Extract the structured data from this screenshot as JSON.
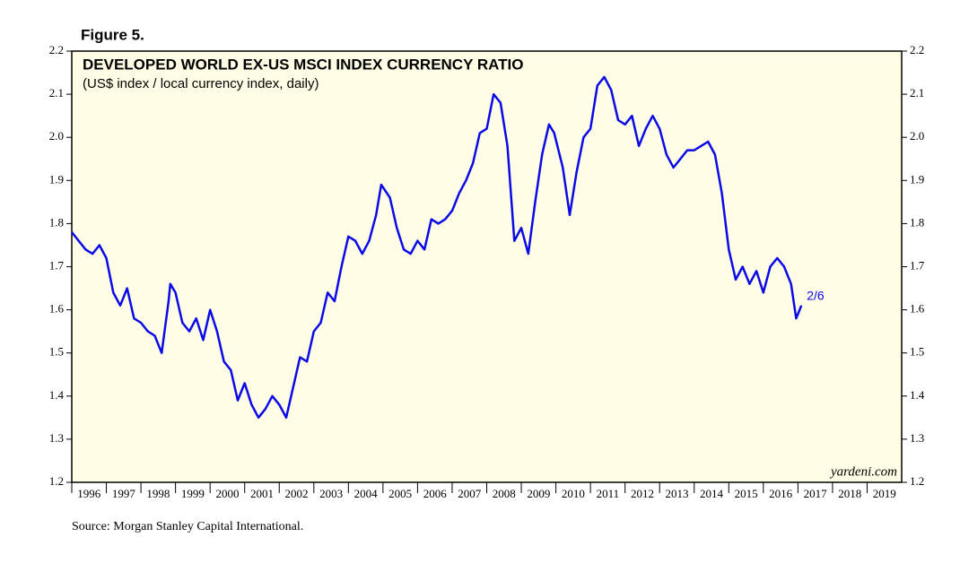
{
  "chart_data": {
    "type": "line",
    "figure_label": "Figure 5.",
    "title": "DEVELOPED WORLD EX-US MSCI INDEX CURRENCY RATIO",
    "subtitle": "(US$ index / local currency index, daily)",
    "watermark": "yardeni.com",
    "source": "Source: Morgan Stanley Capital International.",
    "end_label": "2/6",
    "xlim": [
      1996,
      2020
    ],
    "xticks": [
      {
        "value": 1996.5,
        "label": "1996"
      },
      {
        "value": 1997.5,
        "label": "1997"
      },
      {
        "value": 1998.5,
        "label": "1998"
      },
      {
        "value": 1999.5,
        "label": "1999"
      },
      {
        "value": 2000.5,
        "label": "2000"
      },
      {
        "value": 2001.5,
        "label": "2001"
      },
      {
        "value": 2002.5,
        "label": "2002"
      },
      {
        "value": 2003.5,
        "label": "2003"
      },
      {
        "value": 2004.5,
        "label": "2004"
      },
      {
        "value": 2005.5,
        "label": "2005"
      },
      {
        "value": 2006.5,
        "label": "2006"
      },
      {
        "value": 2007.5,
        "label": "2007"
      },
      {
        "value": 2008.5,
        "label": "2008"
      },
      {
        "value": 2009.5,
        "label": "2009"
      },
      {
        "value": 2010.5,
        "label": "2010"
      },
      {
        "value": 2011.5,
        "label": "2011"
      },
      {
        "value": 2012.5,
        "label": "2012"
      },
      {
        "value": 2013.5,
        "label": "2013"
      },
      {
        "value": 2014.5,
        "label": "2014"
      },
      {
        "value": 2015.5,
        "label": "2015"
      },
      {
        "value": 2016.5,
        "label": "2016"
      },
      {
        "value": 2017.5,
        "label": "2017"
      },
      {
        "value": 2018.5,
        "label": "2018"
      },
      {
        "value": 2019.5,
        "label": "2019"
      }
    ],
    "ylim": [
      1.2,
      2.2
    ],
    "yticks": [
      1.2,
      1.3,
      1.4,
      1.5,
      1.6,
      1.7,
      1.8,
      1.9,
      {
        "value": 2,
        "label": "2.0"
      },
      2.1,
      2.2
    ],
    "x": [
      1996.0,
      1996.2,
      1996.4,
      1996.6,
      1996.8,
      1997.0,
      1997.2,
      1997.4,
      1997.6,
      1997.8,
      1998.0,
      1998.2,
      1998.4,
      1998.6,
      1998.8,
      1998.85,
      1999.0,
      1999.2,
      1999.4,
      1999.6,
      1999.8,
      2000.0,
      2000.2,
      2000.4,
      2000.6,
      2000.8,
      2001.0,
      2001.2,
      2001.4,
      2001.6,
      2001.8,
      2002.0,
      2002.2,
      2002.4,
      2002.6,
      2002.8,
      2003.0,
      2003.2,
      2003.4,
      2003.6,
      2003.8,
      2004.0,
      2004.2,
      2004.4,
      2004.6,
      2004.8,
      2004.95,
      2005.2,
      2005.4,
      2005.6,
      2005.8,
      2006.0,
      2006.2,
      2006.4,
      2006.6,
      2006.8,
      2007.0,
      2007.2,
      2007.4,
      2007.6,
      2007.8,
      2008.0,
      2008.2,
      2008.4,
      2008.6,
      2008.8,
      2009.0,
      2009.2,
      2009.4,
      2009.6,
      2009.8,
      2009.95,
      2010.2,
      2010.4,
      2010.6,
      2010.8,
      2011.0,
      2011.2,
      2011.4,
      2011.6,
      2011.8,
      2012.0,
      2012.2,
      2012.4,
      2012.6,
      2012.8,
      2013.0,
      2013.2,
      2013.4,
      2013.6,
      2013.8,
      2014.0,
      2014.2,
      2014.4,
      2014.6,
      2014.8,
      2015.0,
      2015.2,
      2015.4,
      2015.6,
      2015.8,
      2016.0,
      2016.2,
      2016.4,
      2016.6,
      2016.8,
      2016.95,
      2017.1
    ],
    "series": [
      {
        "color": "#0a0ae6",
        "values": [
          1.78,
          1.76,
          1.74,
          1.73,
          1.75,
          1.72,
          1.64,
          1.61,
          1.65,
          1.58,
          1.57,
          1.55,
          1.54,
          1.5,
          1.62,
          1.66,
          1.64,
          1.57,
          1.55,
          1.58,
          1.53,
          1.6,
          1.55,
          1.48,
          1.46,
          1.39,
          1.43,
          1.38,
          1.35,
          1.37,
          1.4,
          1.38,
          1.35,
          1.42,
          1.49,
          1.48,
          1.55,
          1.57,
          1.64,
          1.62,
          1.7,
          1.77,
          1.76,
          1.73,
          1.76,
          1.82,
          1.89,
          1.86,
          1.79,
          1.74,
          1.73,
          1.76,
          1.74,
          1.81,
          1.8,
          1.81,
          1.83,
          1.87,
          1.9,
          1.94,
          2.01,
          2.02,
          2.1,
          2.08,
          1.98,
          1.76,
          1.79,
          1.73,
          1.85,
          1.96,
          2.03,
          2.01,
          1.93,
          1.82,
          1.92,
          2.0,
          2.02,
          2.12,
          2.14,
          2.11,
          2.04,
          2.03,
          2.05,
          1.98,
          2.02,
          2.05,
          2.02,
          1.96,
          1.93,
          1.95,
          1.97,
          1.97,
          1.98,
          1.99,
          1.96,
          1.87,
          1.74,
          1.67,
          1.7,
          1.66,
          1.69,
          1.64,
          1.7,
          1.72,
          1.7,
          1.66,
          1.58,
          1.61
        ]
      }
    ]
  }
}
